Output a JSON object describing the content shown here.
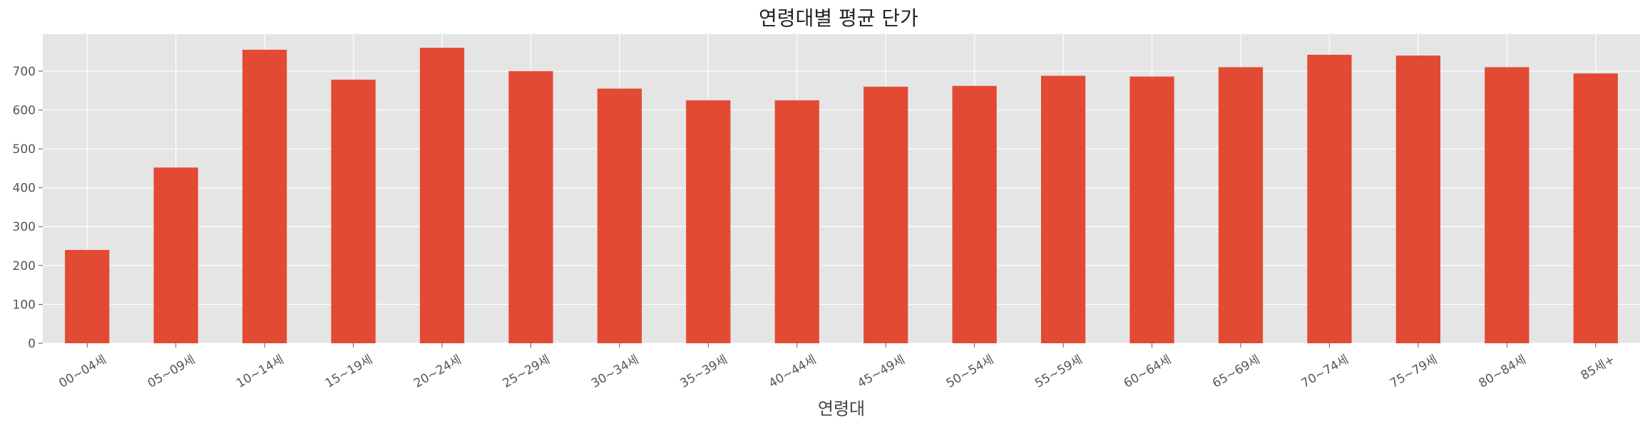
{
  "chart_data": {
    "type": "bar",
    "title": "연령대별 평균 단가",
    "xlabel": "연령대",
    "ylabel": "",
    "categories": [
      "00~04세",
      "05~09세",
      "10~14세",
      "15~19세",
      "20~24세",
      "25~29세",
      "30~34세",
      "35~39세",
      "40~44세",
      "45~49세",
      "50~54세",
      "55~59세",
      "60~64세",
      "65~69세",
      "70~74세",
      "75~79세",
      "80~84세",
      "85세+"
    ],
    "values": [
      240,
      452,
      755,
      678,
      760,
      700,
      655,
      625,
      625,
      660,
      662,
      688,
      686,
      710,
      742,
      740,
      710,
      694
    ],
    "ylim": [
      0,
      795
    ],
    "yticks": [
      0,
      100,
      200,
      300,
      400,
      500,
      600,
      700
    ],
    "grid": true,
    "colors": {
      "bar": "#E24A33",
      "panel": "#E5E5E5",
      "grid": "#FFFFFF"
    }
  }
}
